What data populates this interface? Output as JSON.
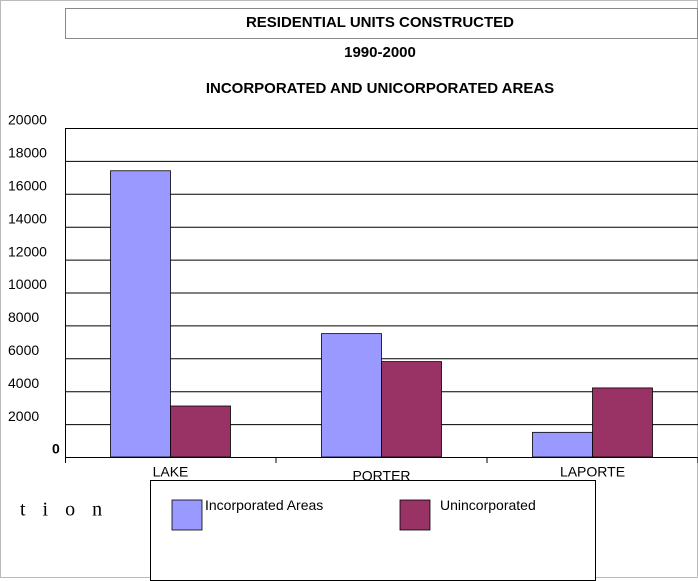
{
  "chart_data": {
    "type": "bar",
    "title": "RESIDENTIAL UNITS CONSTRUCTED",
    "subtitle": "1990-2000",
    "subtitle2": "INCORPORATED AND UNICORPORATED AREAS",
    "annotation": "t i o n",
    "categories": [
      "LAKE",
      "PORTER",
      "LAPORTE"
    ],
    "series": [
      {
        "name": "Incorporated Areas",
        "color": "#9999ff",
        "values": [
          17400,
          7500,
          1500
        ]
      },
      {
        "name": "Unincorporated",
        "color": "#993366",
        "values": [
          3100,
          5800,
          4200
        ]
      }
    ],
    "ylim": [
      0,
      20000
    ],
    "yticks": [
      0,
      2000,
      4000,
      6000,
      8000,
      10000,
      12000,
      14000,
      16000,
      18000,
      20000
    ],
    "grid": true
  }
}
